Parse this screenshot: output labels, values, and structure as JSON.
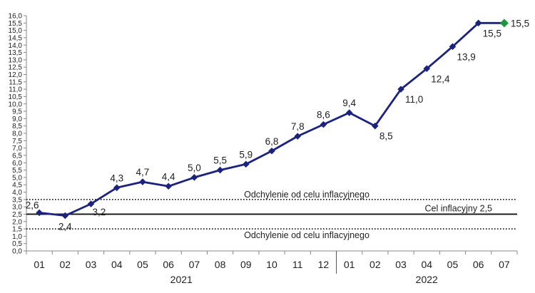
{
  "chart_data": {
    "type": "line",
    "title": "",
    "xlabel": "",
    "ylabel": "",
    "ylim": [
      0,
      16
    ],
    "y_tick_step": 0.5,
    "y_tick_labels": [
      "0,0",
      "0,5",
      "1,0",
      "1,5",
      "2,0",
      "2,5",
      "3,0",
      "3,5",
      "4,0",
      "4,5",
      "5,0",
      "5,5",
      "6,0",
      "6,5",
      "7,0",
      "7,5",
      "8,0",
      "8,5",
      "9,0",
      "9,5",
      "10,0",
      "10,5",
      "11,0",
      "11,5",
      "12,0",
      "12,5",
      "13,0",
      "13,5",
      "14,0",
      "14,5",
      "15,0",
      "15,5",
      "16,0"
    ],
    "categories": [
      "01",
      "02",
      "03",
      "04",
      "05",
      "06",
      "07",
      "08",
      "09",
      "10",
      "11",
      "12",
      "01",
      "02",
      "03",
      "04",
      "05",
      "06",
      "07"
    ],
    "years": [
      {
        "label": "2021",
        "from": 0,
        "to": 11
      },
      {
        "label": "2022",
        "from": 12,
        "to": 18
      }
    ],
    "series": [
      {
        "values": [
          2.6,
          2.4,
          3.2,
          4.3,
          4.7,
          4.4,
          5.0,
          5.5,
          5.9,
          6.8,
          7.8,
          8.6,
          9.4,
          8.5,
          11.0,
          12.4,
          13.9,
          15.5,
          15.5
        ],
        "labels": [
          "2,6",
          "2,4",
          "3,2",
          "4,3",
          "4,7",
          "4,4",
          "5,0",
          "5,5",
          "5,9",
          "6,8",
          "7,8",
          "8,6",
          "9,4",
          "8,5",
          "11,0",
          "12,4",
          "13,9",
          "15,5",
          "15,5"
        ],
        "color": "#1b237e",
        "last_point_color": "#1e9640"
      }
    ],
    "reference_lines": [
      {
        "value": 3.5,
        "style": "dotted",
        "label": "Odchylenie od celu inflacyjnego"
      },
      {
        "value": 2.5,
        "style": "solid",
        "label": "Cel inflacyjny 2,5"
      },
      {
        "value": 1.5,
        "style": "dotted",
        "label": "Odchylenie od celu inflacyjnego"
      }
    ],
    "grid": false,
    "legend": "none"
  }
}
